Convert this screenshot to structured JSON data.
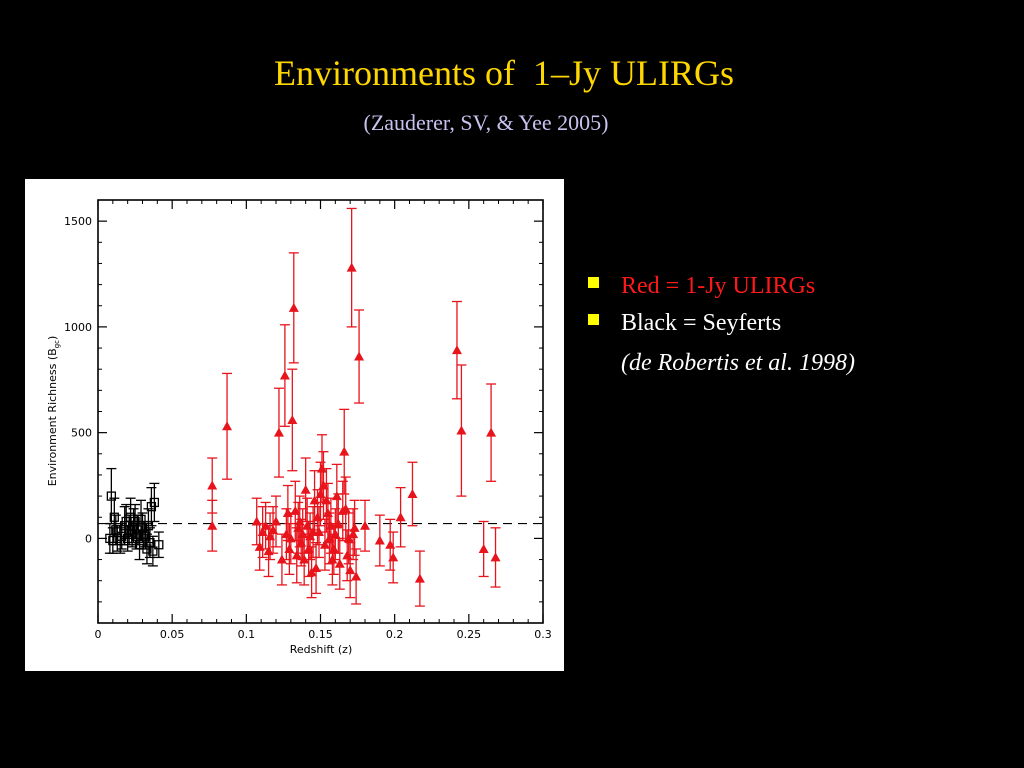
{
  "slide": {
    "title": "Environments of  1–Jy ULIRGs",
    "subtitle": "(Zauderer, SV, & Yee 2005)",
    "bullets": [
      {
        "label": "Red = 1-Jy ULIRGs",
        "color": "#FF1A1A"
      },
      {
        "label": "Black = Seyferts",
        "color": "#FFFFFF"
      }
    ],
    "citation": "(de Robertis et al. 1998)",
    "bullet_color": "#FFFF00"
  },
  "chart_data": {
    "type": "scatter",
    "title": "",
    "xlabel": "Redshift  (z)",
    "ylabel": "Environment  Richness  (B",
    "ylabel_subscript": "gc",
    "ylabel_close": ")",
    "xlim": [
      0,
      0.3
    ],
    "ylim": [
      -400,
      1600
    ],
    "xticks": [
      0,
      0.05,
      0.1,
      0.15,
      0.2,
      0.25,
      0.3
    ],
    "xtick_labels": [
      "0",
      "0.05",
      "0.1",
      "0.15",
      "0.2",
      "0.25",
      "0.3"
    ],
    "yticks": [
      0,
      500,
      1000,
      1500
    ],
    "ytick_labels": [
      "0",
      "500",
      "1000",
      "1500"
    ],
    "reference_line": {
      "y": 70,
      "style": "dashed"
    },
    "grid": false,
    "series": [
      {
        "name": "Red = 1-Jy ULIRGs",
        "marker": "triangle",
        "color": "#E8141C",
        "x": [
          0.077,
          0.077,
          0.087,
          0.107,
          0.109,
          0.111,
          0.113,
          0.115,
          0.116,
          0.118,
          0.12,
          0.122,
          0.124,
          0.126,
          0.127,
          0.128,
          0.129,
          0.13,
          0.131,
          0.132,
          0.133,
          0.134,
          0.135,
          0.136,
          0.137,
          0.138,
          0.139,
          0.14,
          0.141,
          0.142,
          0.143,
          0.144,
          0.145,
          0.146,
          0.147,
          0.148,
          0.149,
          0.15,
          0.151,
          0.152,
          0.153,
          0.154,
          0.155,
          0.156,
          0.157,
          0.158,
          0.159,
          0.16,
          0.161,
          0.162,
          0.163,
          0.165,
          0.166,
          0.167,
          0.168,
          0.169,
          0.17,
          0.171,
          0.172,
          0.173,
          0.174,
          0.176,
          0.18,
          0.19,
          0.197,
          0.199,
          0.204,
          0.212,
          0.217,
          0.242,
          0.245,
          0.26,
          0.265,
          0.268
        ],
        "y": [
          250,
          60,
          530,
          80,
          -40,
          30,
          60,
          -60,
          10,
          40,
          80,
          500,
          -100,
          770,
          20,
          120,
          -50,
          0,
          560,
          1090,
          130,
          -80,
          50,
          80,
          -20,
          20,
          -100,
          230,
          60,
          -50,
          10,
          -160,
          30,
          180,
          -140,
          100,
          30,
          210,
          330,
          250,
          -30,
          180,
          120,
          0,
          60,
          -100,
          -50,
          20,
          200,
          70,
          -120,
          130,
          410,
          140,
          -80,
          0,
          -150,
          1280,
          20,
          50,
          -180,
          860,
          60,
          -10,
          -30,
          -90,
          100,
          210,
          -190,
          890,
          510,
          -50,
          500,
          -90
        ],
        "yerr": [
          130,
          120,
          250,
          110,
          110,
          120,
          110,
          120,
          110,
          110,
          120,
          210,
          120,
          240,
          120,
          130,
          120,
          120,
          240,
          260,
          140,
          130,
          120,
          120,
          110,
          120,
          120,
          150,
          130,
          130,
          110,
          120,
          120,
          140,
          120,
          130,
          120,
          150,
          160,
          160,
          120,
          150,
          140,
          120,
          130,
          120,
          120,
          120,
          150,
          140,
          120,
          140,
          200,
          150,
          120,
          120,
          130,
          280,
          120,
          130,
          130,
          220,
          120,
          120,
          120,
          120,
          140,
          150,
          130,
          230,
          310,
          130,
          230,
          140
        ]
      },
      {
        "name": "Black = Seyferts",
        "marker": "open-square",
        "color": "#000000",
        "x": [
          0.008,
          0.009,
          0.01,
          0.011,
          0.012,
          0.013,
          0.015,
          0.016,
          0.018,
          0.019,
          0.02,
          0.021,
          0.022,
          0.023,
          0.024,
          0.025,
          0.026,
          0.027,
          0.028,
          0.029,
          0.03,
          0.031,
          0.032,
          0.033,
          0.034,
          0.035,
          0.036,
          0.037,
          0.038,
          0.041
        ],
        "y": [
          0,
          200,
          -10,
          100,
          40,
          0,
          -10,
          10,
          60,
          80,
          0,
          40,
          100,
          20,
          60,
          80,
          10,
          40,
          -30,
          90,
          50,
          20,
          10,
          -50,
          60,
          -20,
          150,
          -60,
          170,
          -30
        ],
        "yerr": [
          70,
          130,
          60,
          90,
          70,
          60,
          60,
          60,
          90,
          80,
          60,
          70,
          90,
          60,
          80,
          80,
          60,
          70,
          70,
          90,
          70,
          60,
          60,
          70,
          80,
          70,
          90,
          70,
          90,
          60
        ]
      }
    ]
  }
}
